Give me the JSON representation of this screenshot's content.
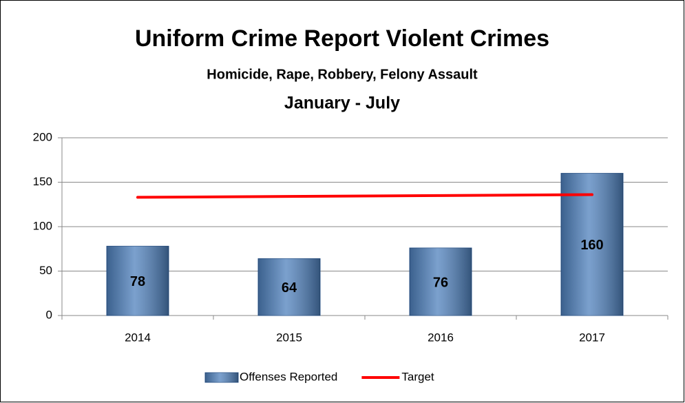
{
  "chart_data": {
    "type": "bar",
    "title": "Uniform Crime Report Violent Crimes",
    "subtitle": "Homicide, Rape, Robbery, Felony Assault",
    "period": "January - July",
    "categories": [
      "2014",
      "2015",
      "2016",
      "2017"
    ],
    "series": [
      {
        "name": "Offenses Reported",
        "type": "bar",
        "color": "#4f81bd",
        "values": [
          78,
          64,
          76,
          160
        ]
      },
      {
        "name": "Target",
        "type": "line",
        "color": "#ff0000",
        "values": [
          133,
          134,
          135,
          136
        ]
      }
    ],
    "ylim": [
      0,
      200
    ],
    "yticks": [
      0,
      50,
      100,
      150,
      200
    ],
    "grid": true,
    "legend": "bottom"
  }
}
